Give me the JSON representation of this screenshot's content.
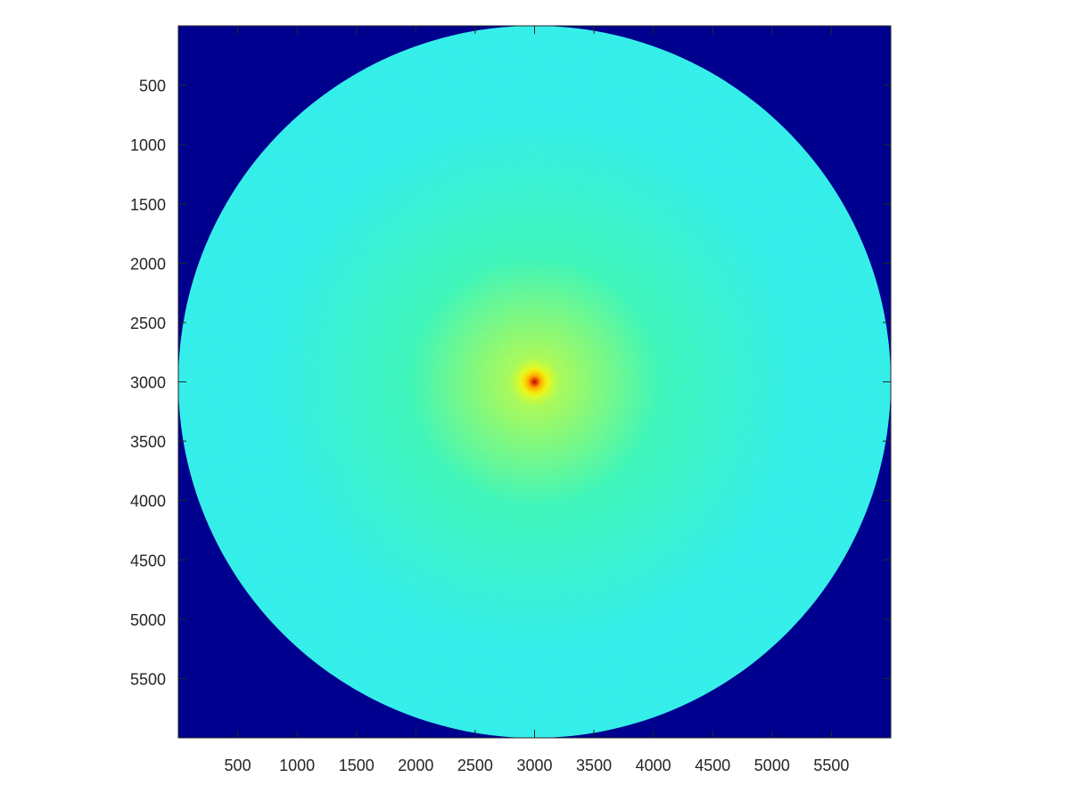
{
  "chart_data": {
    "type": "heatmap",
    "title": "",
    "xlabel": "",
    "ylabel": "",
    "colormap": "jet",
    "image_size": [
      6000,
      6000
    ],
    "xlim": [
      0,
      6000
    ],
    "ylim": [
      0,
      6000
    ],
    "y_direction": "reversed",
    "x_ticks": [
      500,
      1000,
      1500,
      2000,
      2500,
      3000,
      3500,
      4000,
      4500,
      5000,
      5500
    ],
    "x_tick_labels": [
      "500",
      "1000",
      "1500",
      "2000",
      "2500",
      "3000",
      "3500",
      "4000",
      "4500",
      "5000",
      "5500"
    ],
    "y_ticks": [
      500,
      1000,
      1500,
      2000,
      2500,
      3000,
      3500,
      4000,
      4500,
      5000,
      5500
    ],
    "y_tick_labels": [
      "500",
      "1000",
      "1500",
      "2000",
      "2500",
      "3000",
      "3500",
      "4000",
      "4500",
      "5000",
      "5500"
    ],
    "disk": {
      "center": [
        3000,
        3000
      ],
      "radius": 3000
    },
    "background_color": "#00008f",
    "peak_position": [
      3000,
      3000
    ],
    "colors": {
      "background": "#00008f",
      "disk_edge": "#35f3e8",
      "disk_mid": "#40fbb3",
      "inner_glow": "#b5ff4a",
      "peak_halo": "#ffff00",
      "peak_core": "#ff9a00",
      "peak_center": "#c10000",
      "axis": "#262626"
    },
    "grid": false,
    "legend": "none"
  }
}
